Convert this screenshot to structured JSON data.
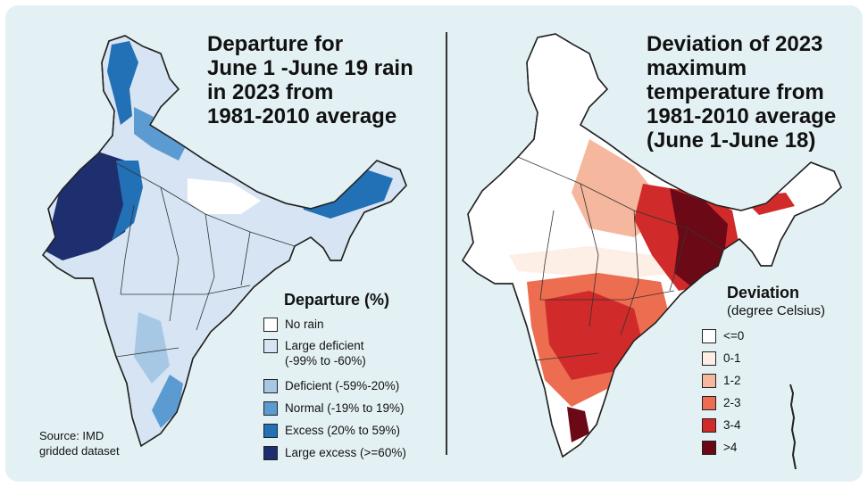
{
  "left_panel": {
    "title_lines": [
      "Departure for",
      "June 1 -June 19 rain",
      "in 2023 from",
      "1981-2010 average"
    ],
    "legend": {
      "title": "Departure (%)",
      "items": [
        {
          "label": "No rain",
          "color": "#ffffff"
        },
        {
          "label": "Large deficient",
          "label2": "(-99% to -60%)",
          "color": "#d6e4f3"
        },
        {
          "label": "Deficient (-59%-20%)",
          "color": "#a7c8e4"
        },
        {
          "label": "Normal (-19% to 19%)",
          "color": "#5b9bd1"
        },
        {
          "label": "Excess (20% to 59%)",
          "color": "#2270b5"
        },
        {
          "label": "Large excess (>=60%)",
          "color": "#1d2f6e"
        }
      ]
    },
    "source_lines": [
      "Source:  IMD",
      "gridded dataset"
    ]
  },
  "right_panel": {
    "title_lines": [
      "Deviation of 2023",
      "maximum",
      "temperature from",
      "1981-2010 average",
      "(June 1-June 18)"
    ],
    "legend": {
      "title": "Deviation",
      "subtitle": "(degree Celsius)",
      "items": [
        {
          "label": "<=0",
          "color": "#ffffff"
        },
        {
          "label": "0-1",
          "color": "#fdeee6"
        },
        {
          "label": "1-2",
          "color": "#f5b79e"
        },
        {
          "label": "2-3",
          "color": "#ec6d4f"
        },
        {
          "label": "3-4",
          "color": "#d12a2a"
        },
        {
          "label": ">4",
          "color": "#6b0a16"
        }
      ]
    }
  }
}
